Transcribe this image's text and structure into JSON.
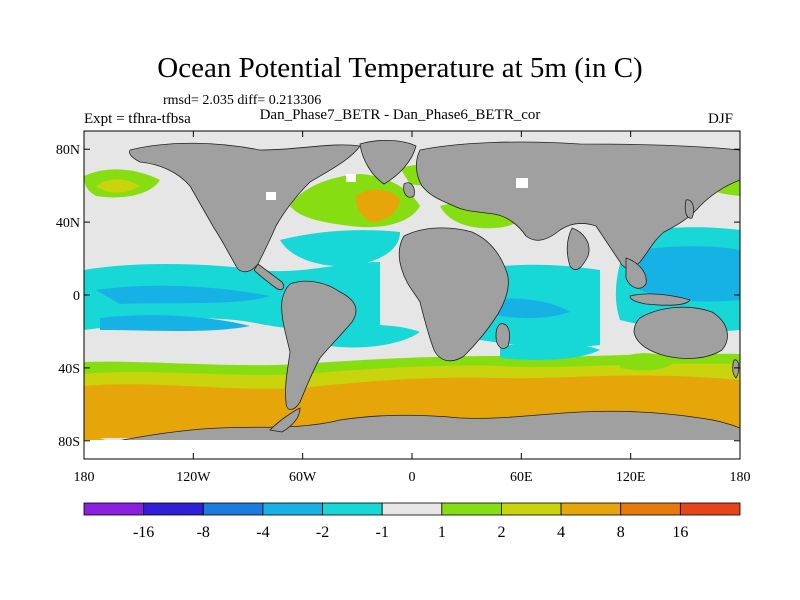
{
  "title": "Ocean Potential Temperature at 5m (in C)",
  "stats_text": "rmsd= 2.035 diff= 0.213306",
  "subtitle": "Dan_Phase7_BETR - Dan_Phase6_BETR_cor",
  "experiment_text": "Expt = tfhra-tfbsa",
  "season": "DJF",
  "lat_ticks": [
    {
      "lat": 80,
      "label": "80N"
    },
    {
      "lat": 40,
      "label": "40N"
    },
    {
      "lat": 0,
      "label": "0"
    },
    {
      "lat": -40,
      "label": "40S"
    },
    {
      "lat": -80,
      "label": "80S"
    }
  ],
  "lon_ticks": [
    {
      "lon": -180,
      "label": "180"
    },
    {
      "lon": -120,
      "label": "120W"
    },
    {
      "lon": -60,
      "label": "60W"
    },
    {
      "lon": 0,
      "label": "0"
    },
    {
      "lon": 60,
      "label": "60E"
    },
    {
      "lon": 120,
      "label": "120E"
    },
    {
      "lon": 180,
      "label": "180"
    }
  ],
  "colorbar": {
    "colors": [
      "#8b1fe0",
      "#2f1fd8",
      "#1c7ae0",
      "#16b2e6",
      "#17d7d7",
      "#e6e6e6",
      "#86de12",
      "#c9d40c",
      "#e6a508",
      "#e67a0a",
      "#e6451a"
    ],
    "labels": [
      "-16",
      "-8",
      "-4",
      "-2",
      "-1",
      "1",
      "2",
      "4",
      "8",
      "16"
    ]
  },
  "colors": {
    "land": "#a0a0a0",
    "neutral": "#e6e6e6",
    "cyan": "#17d7d7",
    "lightblue": "#16b2e6",
    "green": "#86de12",
    "yellow": "#c9d40c",
    "orange": "#e6a508"
  }
}
